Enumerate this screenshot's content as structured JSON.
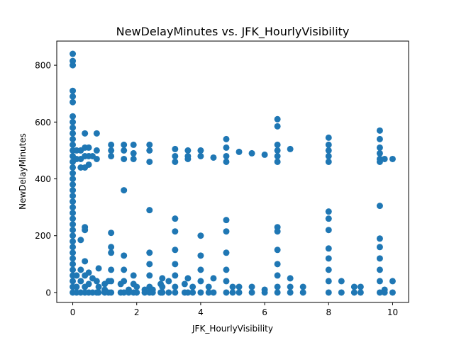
{
  "chart_data": {
    "type": "scatter",
    "title": "NewDelayMinutes vs. JFK_HourlyVisibility",
    "xlabel": "JFK_HourlyVisibility",
    "ylabel": "NewDelayMinutes",
    "xlim": [
      -0.5,
      10.5
    ],
    "ylim": [
      -35,
      885
    ],
    "xticks": [
      0,
      2,
      4,
      6,
      8,
      10
    ],
    "yticks": [
      0,
      200,
      400,
      600,
      800
    ],
    "grid": false,
    "marker_color": "#1f77b4",
    "points": [
      [
        0,
        840
      ],
      [
        0,
        815
      ],
      [
        0,
        800
      ],
      [
        0,
        710
      ],
      [
        0,
        690
      ],
      [
        0,
        670
      ],
      [
        0,
        620
      ],
      [
        0,
        600
      ],
      [
        0,
        580
      ],
      [
        0,
        560
      ],
      [
        0,
        540
      ],
      [
        0,
        520
      ],
      [
        0,
        500
      ],
      [
        0,
        480
      ],
      [
        0,
        460
      ],
      [
        0,
        440
      ],
      [
        0,
        420
      ],
      [
        0,
        400
      ],
      [
        0,
        380
      ],
      [
        0,
        360
      ],
      [
        0,
        340
      ],
      [
        0,
        320
      ],
      [
        0,
        300
      ],
      [
        0,
        280
      ],
      [
        0,
        260
      ],
      [
        0,
        240
      ],
      [
        0,
        220
      ],
      [
        0,
        200
      ],
      [
        0,
        180
      ],
      [
        0,
        160
      ],
      [
        0,
        140
      ],
      [
        0,
        120
      ],
      [
        0,
        100
      ],
      [
        0,
        80
      ],
      [
        0,
        60
      ],
      [
        0,
        40
      ],
      [
        0,
        20
      ],
      [
        0,
        0
      ],
      [
        0.12,
        500
      ],
      [
        0.12,
        470
      ],
      [
        0.12,
        60
      ],
      [
        0.12,
        20
      ],
      [
        0.12,
        0
      ],
      [
        0.25,
        500
      ],
      [
        0.25,
        470
      ],
      [
        0.25,
        440
      ],
      [
        0.25,
        185
      ],
      [
        0.25,
        80
      ],
      [
        0.25,
        40
      ],
      [
        0.25,
        0
      ],
      [
        0.38,
        560
      ],
      [
        0.38,
        510
      ],
      [
        0.38,
        480
      ],
      [
        0.38,
        440
      ],
      [
        0.38,
        230
      ],
      [
        0.38,
        220
      ],
      [
        0.38,
        110
      ],
      [
        0.38,
        60
      ],
      [
        0.38,
        20
      ],
      [
        0.38,
        0
      ],
      [
        0.5,
        510
      ],
      [
        0.5,
        480
      ],
      [
        0.5,
        450
      ],
      [
        0.5,
        70
      ],
      [
        0.5,
        30
      ],
      [
        0.5,
        0
      ],
      [
        0.62,
        480
      ],
      [
        0.62,
        50
      ],
      [
        0.62,
        0
      ],
      [
        0.75,
        560
      ],
      [
        0.75,
        500
      ],
      [
        0.75,
        470
      ],
      [
        0.75,
        40
      ],
      [
        0.75,
        0
      ],
      [
        0.81,
        85
      ],
      [
        0.81,
        20
      ],
      [
        0.81,
        0
      ],
      [
        1.0,
        30
      ],
      [
        1.0,
        10
      ],
      [
        1.0,
        0
      ],
      [
        1.12,
        40
      ],
      [
        1.12,
        0
      ],
      [
        1.2,
        520
      ],
      [
        1.2,
        500
      ],
      [
        1.2,
        480
      ],
      [
        1.2,
        210
      ],
      [
        1.2,
        160
      ],
      [
        1.2,
        140
      ],
      [
        1.2,
        80
      ],
      [
        1.2,
        40
      ],
      [
        1.2,
        0
      ],
      [
        1.5,
        30
      ],
      [
        1.5,
        0
      ],
      [
        1.6,
        520
      ],
      [
        1.6,
        500
      ],
      [
        1.6,
        470
      ],
      [
        1.6,
        360
      ],
      [
        1.6,
        130
      ],
      [
        1.6,
        80
      ],
      [
        1.6,
        40
      ],
      [
        1.6,
        0
      ],
      [
        1.75,
        10
      ],
      [
        1.75,
        0
      ],
      [
        1.9,
        520
      ],
      [
        1.9,
        490
      ],
      [
        1.9,
        470
      ],
      [
        1.9,
        60
      ],
      [
        1.9,
        30
      ],
      [
        1.9,
        0
      ],
      [
        2.0,
        20
      ],
      [
        2.0,
        0
      ],
      [
        2.25,
        10
      ],
      [
        2.25,
        0
      ],
      [
        2.4,
        520
      ],
      [
        2.4,
        500
      ],
      [
        2.4,
        460
      ],
      [
        2.4,
        290
      ],
      [
        2.4,
        140
      ],
      [
        2.4,
        100
      ],
      [
        2.4,
        60
      ],
      [
        2.4,
        20
      ],
      [
        2.4,
        0
      ],
      [
        2.5,
        10
      ],
      [
        2.5,
        0
      ],
      [
        2.75,
        30
      ],
      [
        2.75,
        0
      ],
      [
        2.8,
        50
      ],
      [
        2.8,
        20
      ],
      [
        2.8,
        0
      ],
      [
        3.0,
        40
      ],
      [
        3.0,
        0
      ],
      [
        3.2,
        505
      ],
      [
        3.2,
        480
      ],
      [
        3.2,
        460
      ],
      [
        3.2,
        260
      ],
      [
        3.2,
        215
      ],
      [
        3.2,
        150
      ],
      [
        3.2,
        100
      ],
      [
        3.2,
        60
      ],
      [
        3.2,
        20
      ],
      [
        3.2,
        0
      ],
      [
        3.5,
        30
      ],
      [
        3.5,
        0
      ],
      [
        3.6,
        500
      ],
      [
        3.6,
        480
      ],
      [
        3.6,
        470
      ],
      [
        3.6,
        50
      ],
      [
        3.6,
        0
      ],
      [
        3.75,
        20
      ],
      [
        3.75,
        0
      ],
      [
        4.0,
        500
      ],
      [
        4.0,
        480
      ],
      [
        4.0,
        200
      ],
      [
        4.0,
        130
      ],
      [
        4.0,
        80
      ],
      [
        4.0,
        40
      ],
      [
        4.0,
        0
      ],
      [
        4.25,
        20
      ],
      [
        4.25,
        0
      ],
      [
        4.4,
        475
      ],
      [
        4.4,
        50
      ],
      [
        4.4,
        0
      ],
      [
        4.8,
        540
      ],
      [
        4.8,
        510
      ],
      [
        4.8,
        480
      ],
      [
        4.8,
        460
      ],
      [
        4.8,
        255
      ],
      [
        4.8,
        215
      ],
      [
        4.8,
        140
      ],
      [
        4.8,
        80
      ],
      [
        4.8,
        40
      ],
      [
        4.8,
        0
      ],
      [
        5.0,
        20
      ],
      [
        5.0,
        0
      ],
      [
        5.2,
        495
      ],
      [
        5.2,
        20
      ],
      [
        5.2,
        0
      ],
      [
        5.6,
        490
      ],
      [
        5.6,
        20
      ],
      [
        5.6,
        0
      ],
      [
        6.0,
        485
      ],
      [
        6.0,
        10
      ],
      [
        6.0,
        0
      ],
      [
        6.4,
        610
      ],
      [
        6.4,
        585
      ],
      [
        6.4,
        520
      ],
      [
        6.4,
        500
      ],
      [
        6.4,
        480
      ],
      [
        6.4,
        460
      ],
      [
        6.4,
        230
      ],
      [
        6.4,
        215
      ],
      [
        6.4,
        150
      ],
      [
        6.4,
        100
      ],
      [
        6.4,
        60
      ],
      [
        6.4,
        20
      ],
      [
        6.4,
        0
      ],
      [
        6.8,
        505
      ],
      [
        6.8,
        50
      ],
      [
        6.8,
        20
      ],
      [
        6.8,
        0
      ],
      [
        7.2,
        20
      ],
      [
        7.2,
        0
      ],
      [
        8.0,
        545
      ],
      [
        8.0,
        520
      ],
      [
        8.0,
        500
      ],
      [
        8.0,
        480
      ],
      [
        8.0,
        460
      ],
      [
        8.0,
        285
      ],
      [
        8.0,
        260
      ],
      [
        8.0,
        220
      ],
      [
        8.0,
        155
      ],
      [
        8.0,
        120
      ],
      [
        8.0,
        80
      ],
      [
        8.0,
        40
      ],
      [
        8.0,
        0
      ],
      [
        8.4,
        40
      ],
      [
        8.4,
        0
      ],
      [
        8.8,
        20
      ],
      [
        8.8,
        0
      ],
      [
        9.0,
        20
      ],
      [
        9.0,
        0
      ],
      [
        9.6,
        570
      ],
      [
        9.6,
        540
      ],
      [
        9.6,
        510
      ],
      [
        9.6,
        490
      ],
      [
        9.6,
        470
      ],
      [
        9.6,
        460
      ],
      [
        9.6,
        305
      ],
      [
        9.6,
        190
      ],
      [
        9.6,
        160
      ],
      [
        9.6,
        120
      ],
      [
        9.6,
        80
      ],
      [
        9.6,
        40
      ],
      [
        9.6,
        0
      ],
      [
        9.75,
        470
      ],
      [
        9.75,
        10
      ],
      [
        9.75,
        0
      ],
      [
        10.0,
        470
      ],
      [
        10.0,
        40
      ],
      [
        10.0,
        0
      ]
    ]
  }
}
